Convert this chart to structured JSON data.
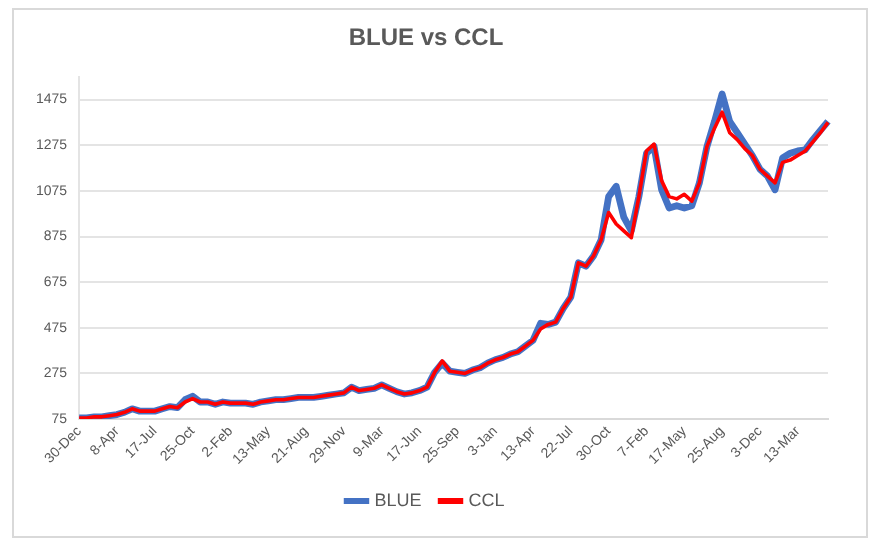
{
  "chart_data": {
    "type": "line",
    "title": "BLUE vs CCL",
    "categories": [
      "30-Dec",
      null,
      null,
      null,
      null,
      "8-Apr",
      null,
      null,
      null,
      null,
      "17-Jul",
      null,
      null,
      null,
      null,
      "25-Oct",
      null,
      null,
      null,
      null,
      "2-Feb",
      null,
      null,
      null,
      null,
      "13-May",
      null,
      null,
      null,
      null,
      "21-Aug",
      null,
      null,
      null,
      null,
      "29-Nov",
      null,
      null,
      null,
      null,
      "9-Mar",
      null,
      null,
      null,
      null,
      "17-Jun",
      null,
      null,
      null,
      null,
      "25-Sep",
      null,
      null,
      null,
      null,
      "3-Jan",
      null,
      null,
      null,
      null,
      "13-Apr",
      null,
      null,
      null,
      null,
      "22-Jul",
      null,
      null,
      null,
      null,
      "30-Oct",
      null,
      null,
      null,
      null,
      "7-Feb",
      null,
      null,
      null,
      null,
      "17-May",
      null,
      null,
      null,
      null,
      "25-Aug",
      null,
      null,
      null,
      null,
      "3-Dec",
      null,
      null,
      null,
      null,
      "13-Mar",
      null,
      null,
      null,
      null
    ],
    "series": [
      {
        "name": "BLUE",
        "color": "#4472c4",
        "values": [
          80,
          80,
          85,
          85,
          90,
          95,
          105,
          120,
          110,
          110,
          110,
          120,
          130,
          125,
          160,
          175,
          150,
          150,
          140,
          150,
          145,
          145,
          145,
          140,
          150,
          155,
          160,
          160,
          165,
          170,
          170,
          170,
          175,
          180,
          185,
          190,
          215,
          200,
          205,
          210,
          225,
          210,
          195,
          185,
          190,
          200,
          215,
          280,
          320,
          285,
          280,
          275,
          290,
          300,
          320,
          335,
          345,
          360,
          370,
          395,
          420,
          495,
          490,
          500,
          560,
          610,
          760,
          745,
          790,
          860,
          1050,
          1095,
          960,
          900,
          1050,
          1240,
          1270,
          1080,
          1000,
          1010,
          1000,
          1010,
          1110,
          1270,
          1380,
          1500,
          1380,
          1330,
          1280,
          1230,
          1170,
          1140,
          1080,
          1220,
          1240,
          1250,
          1255,
          1300,
          1340,
          1380
        ]
      },
      {
        "name": "CCL",
        "color": "#ff0000",
        "values": [
          80,
          80,
          85,
          85,
          90,
          95,
          105,
          120,
          110,
          110,
          110,
          120,
          130,
          125,
          150,
          165,
          150,
          150,
          140,
          150,
          145,
          145,
          145,
          140,
          150,
          155,
          160,
          160,
          165,
          170,
          170,
          170,
          175,
          180,
          185,
          190,
          215,
          200,
          205,
          210,
          225,
          210,
          195,
          185,
          190,
          200,
          215,
          280,
          330,
          285,
          280,
          275,
          290,
          300,
          320,
          335,
          345,
          360,
          370,
          395,
          420,
          470,
          490,
          500,
          560,
          610,
          760,
          745,
          790,
          860,
          980,
          930,
          900,
          870,
          1050,
          1250,
          1280,
          1120,
          1050,
          1040,
          1060,
          1030,
          1110,
          1270,
          1350,
          1420,
          1330,
          1300,
          1260,
          1230,
          1170,
          1140,
          1110,
          1200,
          1210,
          1230,
          1250,
          1290,
          1330,
          1375
        ]
      }
    ],
    "ylim": [
      75,
      1575
    ],
    "yticks": [
      75,
      275,
      475,
      675,
      875,
      1075,
      1275,
      1475
    ],
    "grid": "y",
    "legend": "bottom",
    "marker": "none",
    "line_style": "solid"
  }
}
